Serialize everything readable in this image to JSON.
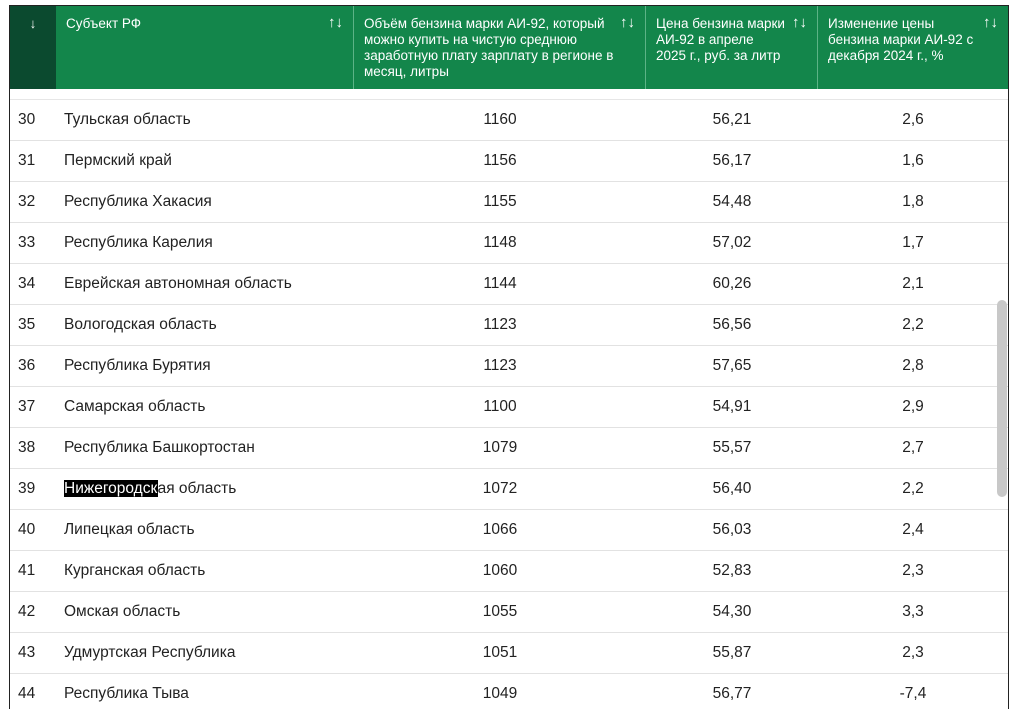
{
  "header": {
    "index_sort": "↓",
    "columns": [
      "Субъект РФ",
      "Объём бензина марки АИ-92, который можно купить на чистую среднюю заработную плату зарплату в регионе в месяц, литры",
      "Цена бензина марки АИ-92 в апреле 2025 г., руб. за литр",
      "Изменение цены бензина марки АИ-92 с декабря 2024 г., %"
    ],
    "sort_icon": "↑↓"
  },
  "rows": [
    [
      "30",
      "Тульская область",
      "1160",
      "56,21",
      "2,6"
    ],
    [
      "31",
      "Пермский край",
      "1156",
      "56,17",
      "1,6"
    ],
    [
      "32",
      "Республика Хакасия",
      "1155",
      "54,48",
      "1,8"
    ],
    [
      "33",
      "Республика Карелия",
      "1148",
      "57,02",
      "1,7"
    ],
    [
      "34",
      "Еврейская автономная область",
      "1144",
      "60,26",
      "2,1"
    ],
    [
      "35",
      "Вологодская область",
      "1123",
      "56,56",
      "2,2"
    ],
    [
      "36",
      "Республика Бурятия",
      "1123",
      "57,65",
      "2,8"
    ],
    [
      "37",
      "Самарская область",
      "1100",
      "54,91",
      "2,9"
    ],
    [
      "38",
      "Республика Башкортостан",
      "1079",
      "55,57",
      "2,7"
    ],
    [
      "39",
      "Нижегородская область",
      "1072",
      "56,40",
      "2,2"
    ],
    [
      "40",
      "Липецкая область",
      "1066",
      "56,03",
      "2,4"
    ],
    [
      "41",
      "Курганская область",
      "1060",
      "52,83",
      "2,3"
    ],
    [
      "42",
      "Омская область",
      "1055",
      "54,30",
      "3,3"
    ],
    [
      "43",
      "Удмуртская Республика",
      "1051",
      "55,87",
      "2,3"
    ],
    [
      "44",
      "Республика Тыва",
      "1049",
      "56,77",
      "-7,4"
    ]
  ],
  "selection": {
    "row": "39",
    "text": "Нижегородск",
    "rest": "ая область"
  },
  "colors": {
    "header": "#13864b",
    "index_header": "#0b4a2f"
  }
}
